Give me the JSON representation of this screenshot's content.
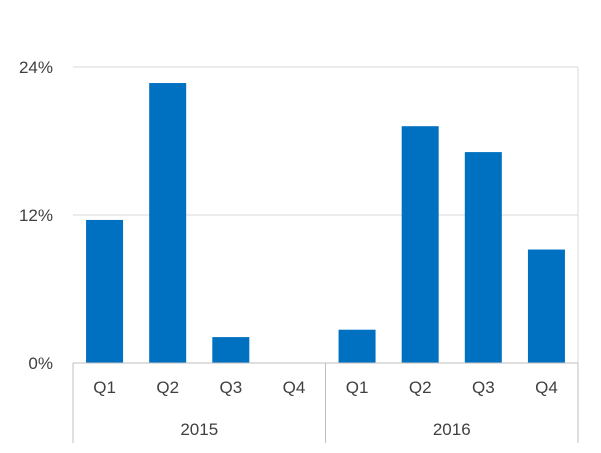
{
  "chart_data": {
    "type": "bar",
    "title": "",
    "xlabel": "",
    "ylabel": "",
    "ylim": [
      0,
      24
    ],
    "y_ticks": [
      0,
      12,
      24
    ],
    "y_tick_labels": [
      "0%",
      "12%",
      "24%"
    ],
    "grid": true,
    "legend": "none",
    "bar_color": "#0070C0",
    "groups": [
      {
        "label": "2015",
        "categories": [
          "Q1",
          "Q2",
          "Q3",
          "Q4"
        ],
        "values": [
          11.6,
          22.7,
          2.1,
          0
        ]
      },
      {
        "label": "2016",
        "categories": [
          "Q1",
          "Q2",
          "Q3",
          "Q4"
        ],
        "values": [
          2.7,
          19.2,
          17.1,
          9.2
        ]
      }
    ]
  }
}
